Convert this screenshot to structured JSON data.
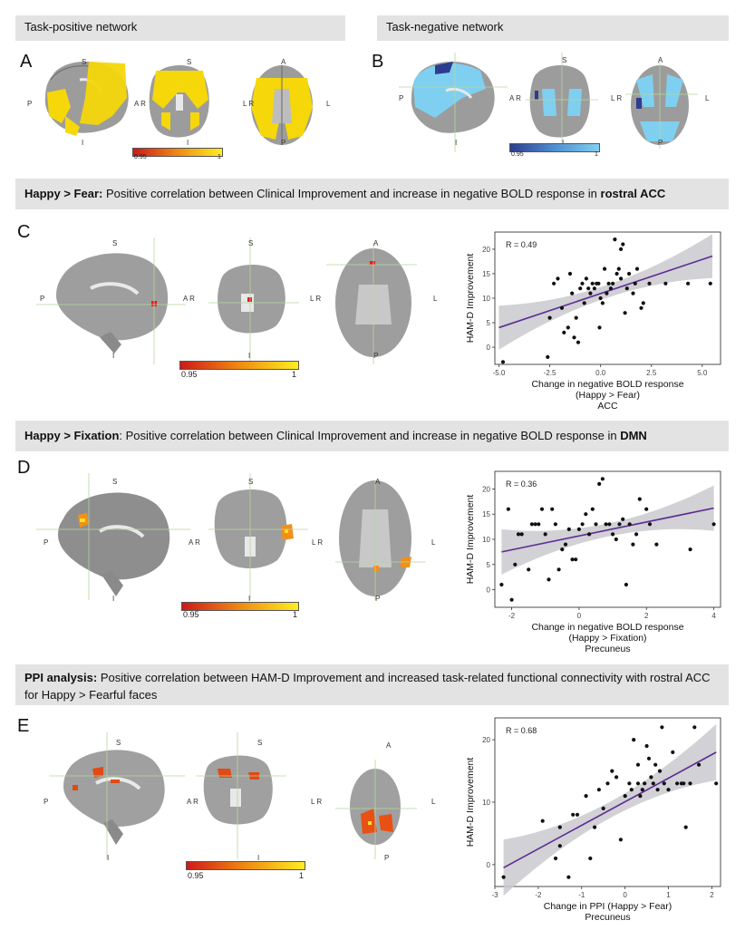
{
  "top": {
    "left_title": "Task-positive network",
    "right_title": "Task-negative network",
    "letter_a": "A",
    "letter_b": "B",
    "cbar_a": {
      "min": "0.95",
      "max": "1"
    },
    "cbar_b": {
      "min": "0.95",
      "max": "1"
    }
  },
  "orient": {
    "S": "S",
    "I": "I",
    "P": "P",
    "A": "A",
    "AR": "A R",
    "LR": "L R",
    "L": "L"
  },
  "colors": {
    "hot_low": "#cc1a1a",
    "hot_high": "#ffee22",
    "cool_low": "#2c3d8f",
    "cool_high": "#7fd0f0",
    "fit_line": "#5b2d91",
    "ribbon": "#c9c9cf",
    "banner": "#e3e3e4"
  },
  "sections": {
    "c": {
      "letter": "C",
      "banner_bold": "Happy > Fear:",
      "banner_text": " Positive correlation between Clinical Improvement and increase in negative BOLD response in ",
      "banner_bold2": "rostral ACC",
      "cbar": {
        "min": "0.95",
        "max": "1"
      }
    },
    "d": {
      "letter": "D",
      "banner_bold": "Happy > Fixation",
      "banner_text": ": Positive correlation between Clinical Improvement and increase in negative BOLD response in ",
      "banner_bold2": "DMN",
      "cbar": {
        "min": "0.95",
        "max": "1"
      }
    },
    "e": {
      "letter": "E",
      "banner_bold": "PPI analysis:",
      "banner_text": " Positive correlation between HAM-D Improvement and increased task-related functional connectivity with rostral ACC for Happy > Fearful faces",
      "banner_bold2": "",
      "cbar": {
        "min": "0.95",
        "max": "1"
      }
    }
  },
  "chart_data": [
    {
      "type": "scatter",
      "id": "c",
      "annotation": "R = 0.49",
      "xlabel": [
        "Change in negative BOLD response",
        "(Happy > Fear)",
        "ACC"
      ],
      "ylabel": "HAM-D Improvement",
      "xlim": [
        -5.2,
        5.9
      ],
      "ylim": [
        -3.5,
        23.5
      ],
      "xticks": [
        -5.0,
        -2.5,
        0.0,
        2.5,
        5.0
      ],
      "xtick_labels": [
        "-5.0",
        "-2.5",
        "0.0",
        "2.5",
        "5.0"
      ],
      "yticks": [
        0,
        5,
        10,
        15,
        20
      ],
      "fit": {
        "x0": -5.0,
        "y0": 4.0,
        "x1": 5.5,
        "y1": 18.6
      },
      "points": [
        [
          -4.8,
          -3
        ],
        [
          -2.6,
          -2
        ],
        [
          -2.5,
          6
        ],
        [
          -2.3,
          13
        ],
        [
          -2.1,
          14
        ],
        [
          -1.9,
          8
        ],
        [
          -1.8,
          3
        ],
        [
          -1.6,
          4
        ],
        [
          -1.5,
          15
        ],
        [
          -1.4,
          11
        ],
        [
          -1.3,
          2
        ],
        [
          -1.2,
          6
        ],
        [
          -1.1,
          1
        ],
        [
          -1.0,
          12
        ],
        [
          -0.9,
          13
        ],
        [
          -0.8,
          9
        ],
        [
          -0.7,
          14
        ],
        [
          -0.6,
          12
        ],
        [
          -0.5,
          11
        ],
        [
          -0.4,
          13
        ],
        [
          -0.3,
          12
        ],
        [
          -0.2,
          13
        ],
        [
          -0.1,
          13
        ],
        [
          -0.05,
          4
        ],
        [
          0.0,
          10
        ],
        [
          0.1,
          9
        ],
        [
          0.2,
          16
        ],
        [
          0.3,
          11
        ],
        [
          0.4,
          13
        ],
        [
          0.5,
          12
        ],
        [
          0.6,
          13
        ],
        [
          0.7,
          22
        ],
        [
          0.8,
          15
        ],
        [
          0.9,
          16
        ],
        [
          1.0,
          20
        ],
        [
          1.1,
          21
        ],
        [
          1.2,
          7
        ],
        [
          1.3,
          12
        ],
        [
          1.4,
          15
        ],
        [
          1.6,
          11
        ],
        [
          1.7,
          13
        ],
        [
          1.8,
          16
        ],
        [
          2.0,
          8
        ],
        [
          2.1,
          9
        ],
        [
          2.4,
          13
        ],
        [
          3.2,
          13
        ],
        [
          4.3,
          13
        ],
        [
          5.4,
          13
        ],
        [
          1.0,
          14
        ]
      ]
    },
    {
      "type": "scatter",
      "id": "d",
      "annotation": "R = 0.36",
      "xlabel": [
        "Change in negative BOLD response",
        "(Happy > Fixation)",
        "Precuneus"
      ],
      "ylabel": "HAM-D Improvement",
      "xlim": [
        -2.5,
        4.2
      ],
      "ylim": [
        -3.5,
        23.5
      ],
      "xticks": [
        -2,
        0,
        2,
        4
      ],
      "xtick_labels": [
        "-2",
        "0",
        "2",
        "4"
      ],
      "yticks": [
        0,
        5,
        10,
        15,
        20
      ],
      "fit": {
        "x0": -2.3,
        "y0": 7.5,
        "x1": 4.0,
        "y1": 16.2
      },
      "points": [
        [
          -2.3,
          1
        ],
        [
          -2.1,
          16
        ],
        [
          -2.0,
          -2
        ],
        [
          -1.9,
          5
        ],
        [
          -1.8,
          11
        ],
        [
          -1.7,
          11
        ],
        [
          -1.5,
          4
        ],
        [
          -1.4,
          13
        ],
        [
          -1.3,
          13
        ],
        [
          -1.2,
          13
        ],
        [
          -1.1,
          16
        ],
        [
          -1.0,
          11
        ],
        [
          -0.9,
          2
        ],
        [
          -0.8,
          16
        ],
        [
          -0.7,
          13
        ],
        [
          -0.6,
          4
        ],
        [
          -0.5,
          8
        ],
        [
          -0.4,
          9
        ],
        [
          -0.3,
          12
        ],
        [
          -0.2,
          6
        ],
        [
          -0.1,
          6
        ],
        [
          0.0,
          12
        ],
        [
          0.1,
          13
        ],
        [
          0.2,
          15
        ],
        [
          0.3,
          11
        ],
        [
          0.4,
          16
        ],
        [
          0.5,
          13
        ],
        [
          0.6,
          21
        ],
        [
          0.7,
          22
        ],
        [
          0.8,
          13
        ],
        [
          0.9,
          13
        ],
        [
          1.0,
          11
        ],
        [
          1.1,
          10
        ],
        [
          1.2,
          13
        ],
        [
          1.3,
          14
        ],
        [
          1.4,
          1
        ],
        [
          1.5,
          13
        ],
        [
          1.6,
          9
        ],
        [
          1.7,
          11
        ],
        [
          1.8,
          18
        ],
        [
          2.0,
          16
        ],
        [
          2.1,
          13
        ],
        [
          2.3,
          9
        ],
        [
          3.3,
          8
        ],
        [
          4.0,
          13
        ]
      ]
    },
    {
      "type": "scatter",
      "id": "e",
      "annotation": "R = 0.68",
      "xlabel": [
        "Change in PPI (Happy > Fear)",
        "Precuneus"
      ],
      "ylabel": "HAM-D Improvement",
      "xlim": [
        -3.0,
        2.2
      ],
      "ylim": [
        -3.5,
        23.5
      ],
      "xticks": [
        -3,
        -2,
        -1,
        0,
        1,
        2
      ],
      "xtick_labels": [
        "-3",
        "-2",
        "-1",
        "0",
        "1",
        "2"
      ],
      "yticks": [
        0,
        10,
        20
      ],
      "fit": {
        "x0": -2.8,
        "y0": -0.5,
        "x1": 2.1,
        "y1": 18.0
      },
      "points": [
        [
          -2.8,
          -2
        ],
        [
          -1.3,
          -2
        ],
        [
          -1.5,
          6
        ],
        [
          -1.6,
          1
        ],
        [
          -1.5,
          3
        ],
        [
          -1.2,
          8
        ],
        [
          -1.1,
          8
        ],
        [
          -0.9,
          11
        ],
        [
          -0.8,
          1
        ],
        [
          -0.7,
          6
        ],
        [
          -0.6,
          12
        ],
        [
          -0.5,
          9
        ],
        [
          -0.4,
          13
        ],
        [
          -0.3,
          15
        ],
        [
          -0.2,
          14
        ],
        [
          -0.1,
          4
        ],
        [
          0.0,
          11
        ],
        [
          0.1,
          13
        ],
        [
          0.15,
          12
        ],
        [
          0.2,
          20
        ],
        [
          0.3,
          13
        ],
        [
          0.35,
          11
        ],
        [
          0.4,
          12
        ],
        [
          0.45,
          13
        ],
        [
          0.5,
          19
        ],
        [
          0.55,
          17
        ],
        [
          0.6,
          14
        ],
        [
          0.65,
          13
        ],
        [
          0.7,
          16
        ],
        [
          0.75,
          12
        ],
        [
          0.8,
          15
        ],
        [
          0.85,
          22
        ],
        [
          0.9,
          13
        ],
        [
          1.0,
          12
        ],
        [
          1.1,
          18
        ],
        [
          1.2,
          13
        ],
        [
          1.3,
          13
        ],
        [
          1.35,
          13
        ],
        [
          1.4,
          6
        ],
        [
          1.5,
          13
        ],
        [
          1.6,
          22
        ],
        [
          1.7,
          16
        ],
        [
          2.1,
          13
        ],
        [
          -1.9,
          7
        ],
        [
          0.3,
          16
        ]
      ]
    }
  ]
}
